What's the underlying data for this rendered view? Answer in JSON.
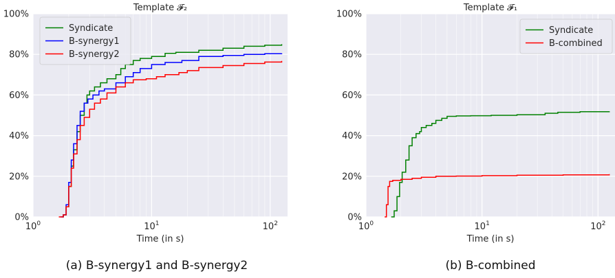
{
  "chart_data": [
    {
      "type": "line",
      "title": "Template 𝓕₂",
      "xlabel": "Time (in s)",
      "ylabel": "",
      "xscale": "log",
      "xlim": [
        1,
        140
      ],
      "ylim": [
        0,
        1
      ],
      "xticks": [
        {
          "v": 1,
          "base": "10",
          "exp": "0"
        },
        {
          "v": 10,
          "base": "10",
          "exp": "1"
        },
        {
          "v": 100,
          "base": "10",
          "exp": "2"
        }
      ],
      "yticks": [
        {
          "v": 0,
          "label": "0%"
        },
        {
          "v": 0.2,
          "label": "20%"
        },
        {
          "v": 0.4,
          "label": "40%"
        },
        {
          "v": 0.6,
          "label": "60%"
        },
        {
          "v": 0.8,
          "label": "80%"
        },
        {
          "v": 1.0,
          "label": "100%"
        }
      ],
      "grid": true,
      "legend_position": "top-left",
      "caption": "(a) B-synergy1 and B-synergy2",
      "series": [
        {
          "name": "Syndicate",
          "color": "#008000",
          "points": [
            [
              1.75,
              0
            ],
            [
              1.8,
              0.01
            ],
            [
              1.9,
              0.05
            ],
            [
              2.0,
              0.15
            ],
            [
              2.1,
              0.25
            ],
            [
              2.2,
              0.33
            ],
            [
              2.35,
              0.42
            ],
            [
              2.5,
              0.5
            ],
            [
              2.7,
              0.56
            ],
            [
              2.85,
              0.6
            ],
            [
              3.0,
              0.62
            ],
            [
              3.3,
              0.64
            ],
            [
              3.7,
              0.66
            ],
            [
              4.2,
              0.68
            ],
            [
              5.0,
              0.7
            ],
            [
              5.5,
              0.73
            ],
            [
              6.0,
              0.75
            ],
            [
              7.0,
              0.77
            ],
            [
              8.0,
              0.78
            ],
            [
              10.0,
              0.79
            ],
            [
              13.0,
              0.805
            ],
            [
              16.0,
              0.81
            ],
            [
              25.0,
              0.82
            ],
            [
              40.0,
              0.83
            ],
            [
              60.0,
              0.84
            ],
            [
              90.0,
              0.845
            ],
            [
              125.0,
              0.85
            ]
          ]
        },
        {
          "name": "B-synergy1",
          "color": "#0000ff",
          "points": [
            [
              1.7,
              0
            ],
            [
              1.8,
              0.01
            ],
            [
              1.9,
              0.06
            ],
            [
              2.0,
              0.17
            ],
            [
              2.1,
              0.28
            ],
            [
              2.2,
              0.36
            ],
            [
              2.35,
              0.45
            ],
            [
              2.5,
              0.52
            ],
            [
              2.7,
              0.56
            ],
            [
              2.9,
              0.58
            ],
            [
              3.2,
              0.6
            ],
            [
              3.6,
              0.62
            ],
            [
              4.0,
              0.63
            ],
            [
              5.0,
              0.66
            ],
            [
              6.0,
              0.69
            ],
            [
              7.0,
              0.71
            ],
            [
              8.0,
              0.73
            ],
            [
              10.0,
              0.75
            ],
            [
              13.0,
              0.76
            ],
            [
              18.0,
              0.77
            ],
            [
              25.0,
              0.79
            ],
            [
              40.0,
              0.795
            ],
            [
              60.0,
              0.8
            ],
            [
              90.0,
              0.803
            ],
            [
              125.0,
              0.805
            ]
          ]
        },
        {
          "name": "B-synergy2",
          "color": "#ff0000",
          "points": [
            [
              1.65,
              0
            ],
            [
              1.8,
              0.01
            ],
            [
              1.9,
              0.05
            ],
            [
              2.0,
              0.15
            ],
            [
              2.1,
              0.24
            ],
            [
              2.2,
              0.31
            ],
            [
              2.35,
              0.38
            ],
            [
              2.5,
              0.45
            ],
            [
              2.7,
              0.49
            ],
            [
              3.0,
              0.53
            ],
            [
              3.3,
              0.56
            ],
            [
              3.7,
              0.58
            ],
            [
              4.2,
              0.61
            ],
            [
              5.0,
              0.64
            ],
            [
              6.0,
              0.66
            ],
            [
              7.0,
              0.675
            ],
            [
              9.0,
              0.68
            ],
            [
              11.0,
              0.69
            ],
            [
              13.0,
              0.7
            ],
            [
              17.0,
              0.71
            ],
            [
              20.0,
              0.72
            ],
            [
              25.0,
              0.735
            ],
            [
              40.0,
              0.745
            ],
            [
              60.0,
              0.755
            ],
            [
              90.0,
              0.762
            ],
            [
              125.0,
              0.768
            ]
          ]
        }
      ]
    },
    {
      "type": "line",
      "title": "Template 𝓕₁",
      "xlabel": "Time (in s)",
      "ylabel": "",
      "xscale": "log",
      "xlim": [
        1,
        140
      ],
      "ylim": [
        0,
        1
      ],
      "xticks": [
        {
          "v": 1,
          "base": "10",
          "exp": "0"
        },
        {
          "v": 10,
          "base": "10",
          "exp": "1"
        },
        {
          "v": 100,
          "base": "10",
          "exp": "2"
        }
      ],
      "yticks": [
        {
          "v": 0,
          "label": "0%"
        },
        {
          "v": 0.2,
          "label": "20%"
        },
        {
          "v": 0.4,
          "label": "40%"
        },
        {
          "v": 0.6,
          "label": "60%"
        },
        {
          "v": 0.8,
          "label": "80%"
        },
        {
          "v": 1.0,
          "label": "100%"
        }
      ],
      "grid": true,
      "legend_position": "top-right",
      "caption": "(b) B-combined",
      "series": [
        {
          "name": "Syndicate",
          "color": "#008000",
          "points": [
            [
              1.65,
              0
            ],
            [
              1.75,
              0.03
            ],
            [
              1.85,
              0.1
            ],
            [
              1.95,
              0.17
            ],
            [
              2.05,
              0.22
            ],
            [
              2.2,
              0.28
            ],
            [
              2.35,
              0.35
            ],
            [
              2.5,
              0.39
            ],
            [
              2.7,
              0.41
            ],
            [
              2.9,
              0.42
            ],
            [
              3.0,
              0.44
            ],
            [
              3.3,
              0.45
            ],
            [
              3.7,
              0.46
            ],
            [
              4.0,
              0.475
            ],
            [
              4.5,
              0.485
            ],
            [
              5.0,
              0.495
            ],
            [
              6.0,
              0.497
            ],
            [
              8.0,
              0.498
            ],
            [
              12.0,
              0.5
            ],
            [
              20.0,
              0.503
            ],
            [
              35.0,
              0.51
            ],
            [
              45.0,
              0.515
            ],
            [
              70.0,
              0.518
            ],
            [
              125.0,
              0.52
            ]
          ]
        },
        {
          "name": "B-combined",
          "color": "#ff0000",
          "points": [
            [
              1.45,
              0
            ],
            [
              1.5,
              0.06
            ],
            [
              1.55,
              0.15
            ],
            [
              1.6,
              0.175
            ],
            [
              1.7,
              0.18
            ],
            [
              2.0,
              0.185
            ],
            [
              2.5,
              0.19
            ],
            [
              3.0,
              0.195
            ],
            [
              4.0,
              0.2
            ],
            [
              6.0,
              0.201
            ],
            [
              10.0,
              0.203
            ],
            [
              20.0,
              0.205
            ],
            [
              50.0,
              0.207
            ],
            [
              125.0,
              0.21
            ]
          ]
        }
      ]
    }
  ]
}
